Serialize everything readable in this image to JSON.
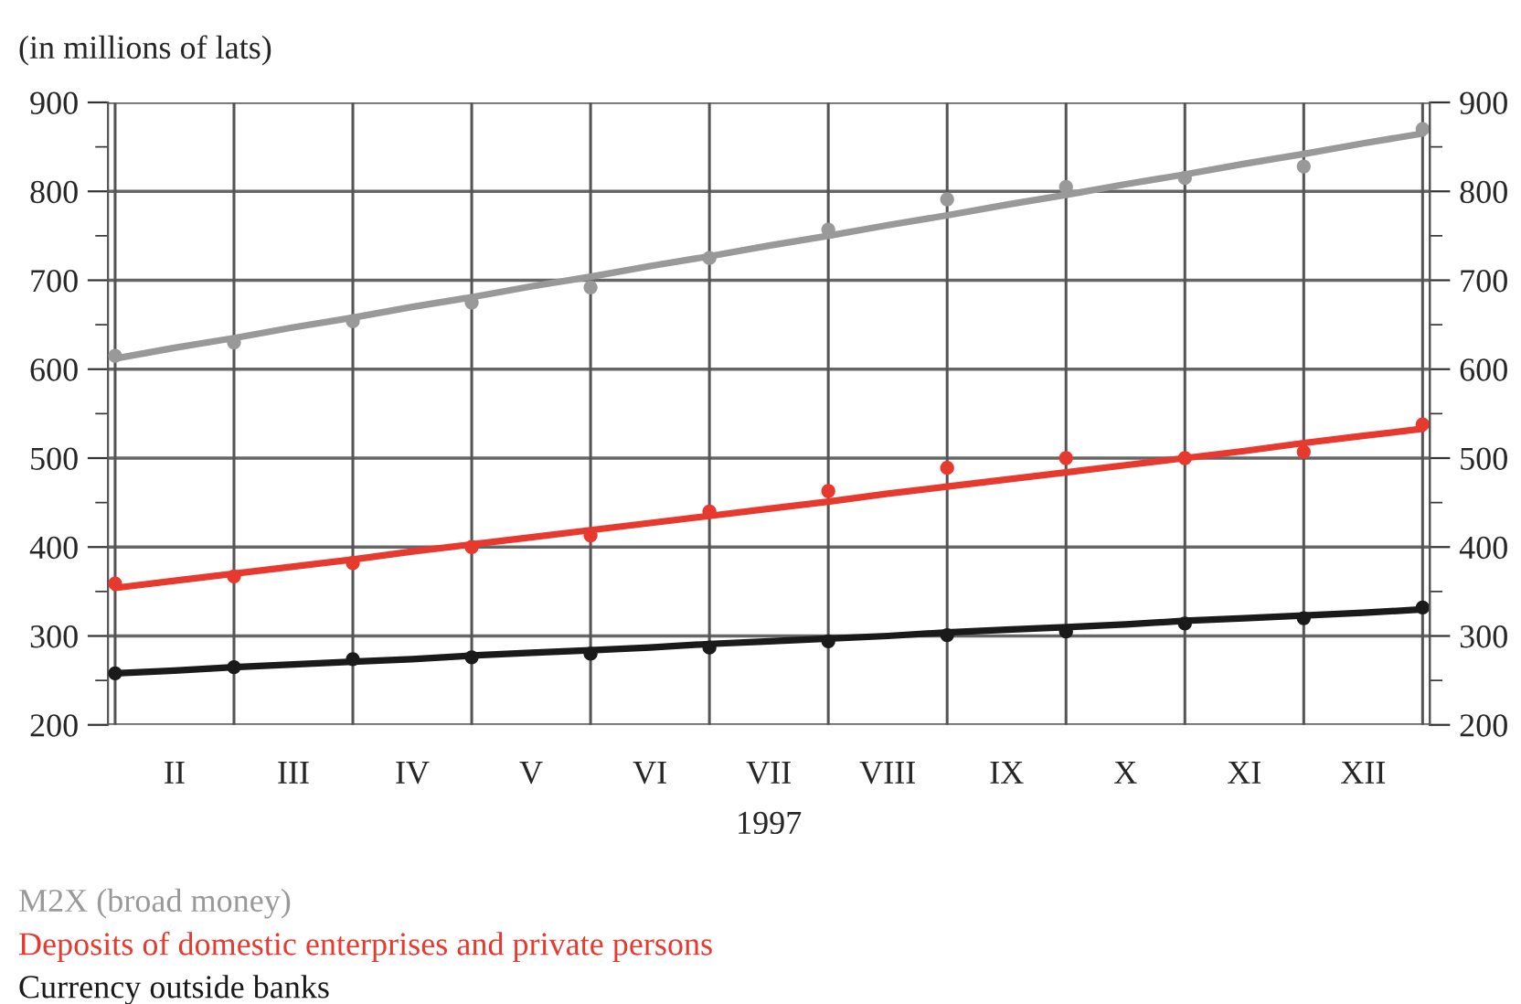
{
  "chart_data": {
    "type": "scatter",
    "ylabel": "(in millions of lats)",
    "xlabel": "1997",
    "categories": [
      null,
      "II",
      null,
      "III",
      null,
      "IV",
      null,
      "V",
      null,
      "VI",
      null,
      "VII",
      null,
      "VIII",
      null,
      "IX",
      null,
      "X",
      null,
      "XI",
      null,
      "XII",
      null
    ],
    "series": [
      {
        "name": "M2X (broad money)",
        "color": "#999999",
        "marker": "circle",
        "values": [
          615,
          null,
          630,
          null,
          654,
          null,
          675,
          null,
          692,
          null,
          725,
          null,
          757,
          null,
          791,
          null,
          805,
          null,
          815,
          null,
          828,
          null,
          870
        ]
      },
      {
        "name": "Deposits of domestic enterprises and private persons",
        "color": "#e8392f",
        "marker": "circle",
        "values": [
          359,
          null,
          367,
          null,
          382,
          null,
          400,
          null,
          413,
          null,
          440,
          null,
          463,
          null,
          489,
          null,
          500,
          null,
          500,
          null,
          507,
          null,
          538
        ]
      },
      {
        "name": "Currency outside banks",
        "color": "#1a1a1a",
        "marker": "circle",
        "values": [
          258,
          null,
          265,
          null,
          274,
          null,
          276,
          null,
          280,
          null,
          287,
          null,
          294,
          null,
          301,
          null,
          305,
          null,
          314,
          null,
          320,
          null,
          332
        ]
      },
      {
        "type": "line",
        "color": "#999999",
        "values": [
          612,
          624,
          635,
          647,
          658,
          670,
          681,
          693,
          704,
          716,
          727,
          739,
          750,
          762,
          773,
          785,
          796,
          808,
          819,
          831,
          842,
          854,
          865
        ]
      },
      {
        "type": "line",
        "color": "#e8392f",
        "values": [
          354,
          362,
          370,
          378,
          386,
          395,
          403,
          411,
          419,
          427,
          435,
          443,
          451,
          460,
          468,
          476,
          484,
          492,
          500,
          508,
          517,
          525,
          533
        ]
      },
      {
        "type": "line",
        "color": "#1a1a1a",
        "values": [
          258,
          261,
          265,
          268,
          271,
          274,
          278,
          281,
          284,
          287,
          291,
          294,
          297,
          300,
          304,
          307,
          310,
          313,
          317,
          320,
          323,
          326,
          330
        ]
      }
    ],
    "ylim": [
      200,
      900
    ],
    "yticks": [
      200,
      {
        "value": 250,
        "label": null
      },
      300,
      {
        "value": 350,
        "label": null
      },
      400,
      {
        "value": 450,
        "label": null
      },
      500,
      {
        "value": 550,
        "label": null
      },
      600,
      {
        "value": 650,
        "label": null
      },
      700,
      {
        "value": 750,
        "label": null
      },
      800,
      {
        "value": 850,
        "label": null
      },
      900
    ],
    "y2lim": [
      200,
      900
    ],
    "y2ticks": [
      200,
      {
        "value": 250,
        "label": null
      },
      300,
      {
        "value": 350,
        "label": null
      },
      400,
      {
        "value": 450,
        "label": null
      },
      500,
      {
        "value": 550,
        "label": null
      },
      600,
      {
        "value": 650,
        "label": null
      },
      700,
      {
        "value": 750,
        "label": null
      },
      800,
      {
        "value": 850,
        "label": null
      },
      900
    ],
    "grid": true
  }
}
